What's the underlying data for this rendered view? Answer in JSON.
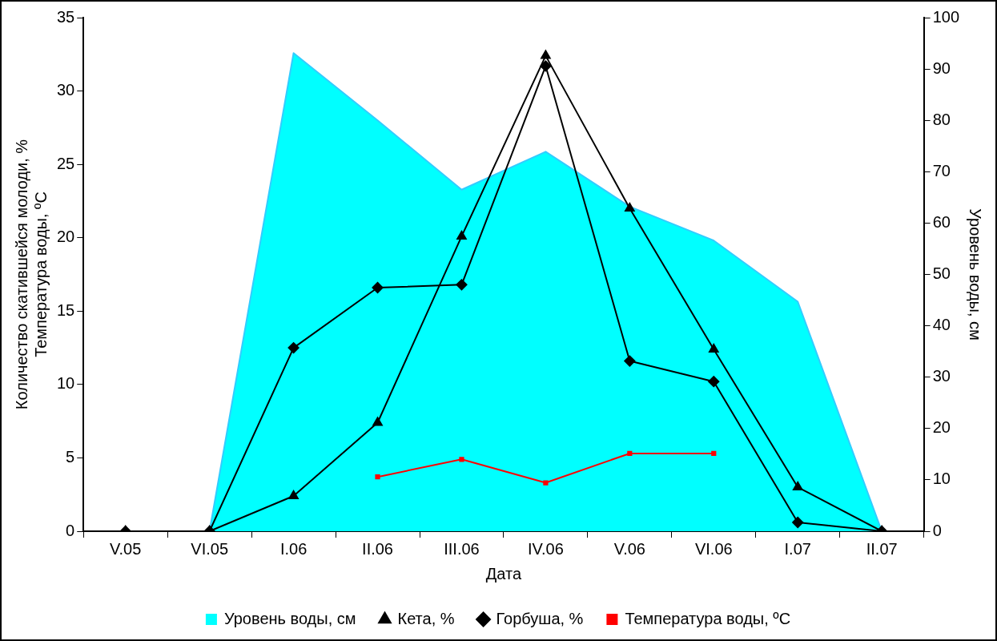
{
  "chart_data": {
    "type": "line",
    "xlabel": "Дата",
    "ylabel": "Количество скатившейся молоди, %\nТемпература воды, ºC",
    "y2label": "Уровень воды, см",
    "categories": [
      "V.05",
      "VI.05",
      "I.06",
      "II.06",
      "III.06",
      "IV.06",
      "V.06",
      "VI.06",
      "I.07",
      "II.07"
    ],
    "series": [
      {
        "name": "Уровень воды, см",
        "type": "area",
        "axis": "y2",
        "color": "#00ffff",
        "values": [
          0,
          0,
          93.1,
          80,
          66.5,
          73.9,
          63.2,
          56.6,
          44.7,
          0
        ]
      },
      {
        "name": "Кета, %",
        "color": "#000000",
        "marker": "triangle",
        "values": [
          0,
          0,
          2.4,
          7.4,
          20.1,
          32.4,
          22.0,
          12.4,
          3.0,
          0
        ]
      },
      {
        "name": "Горбуша, %",
        "color": "#000000",
        "marker": "diamond",
        "values": [
          0,
          0,
          12.5,
          16.6,
          16.8,
          31.7,
          11.6,
          10.2,
          0.6,
          0
        ]
      },
      {
        "name": "Температура воды, ºC",
        "color": "#ff0000",
        "marker": "square",
        "values": [
          null,
          null,
          null,
          3.7,
          4.9,
          3.3,
          5.3,
          5.3,
          null,
          null
        ]
      }
    ],
    "ylim": [
      0,
      35
    ],
    "yticks": [
      0,
      5,
      10,
      15,
      20,
      25,
      30,
      35
    ],
    "y2lim": [
      0,
      100
    ],
    "y2ticks": [
      0,
      10,
      20,
      30,
      40,
      50,
      60,
      70,
      80,
      90,
      100
    ],
    "grid": false,
    "legend": "bottom"
  }
}
